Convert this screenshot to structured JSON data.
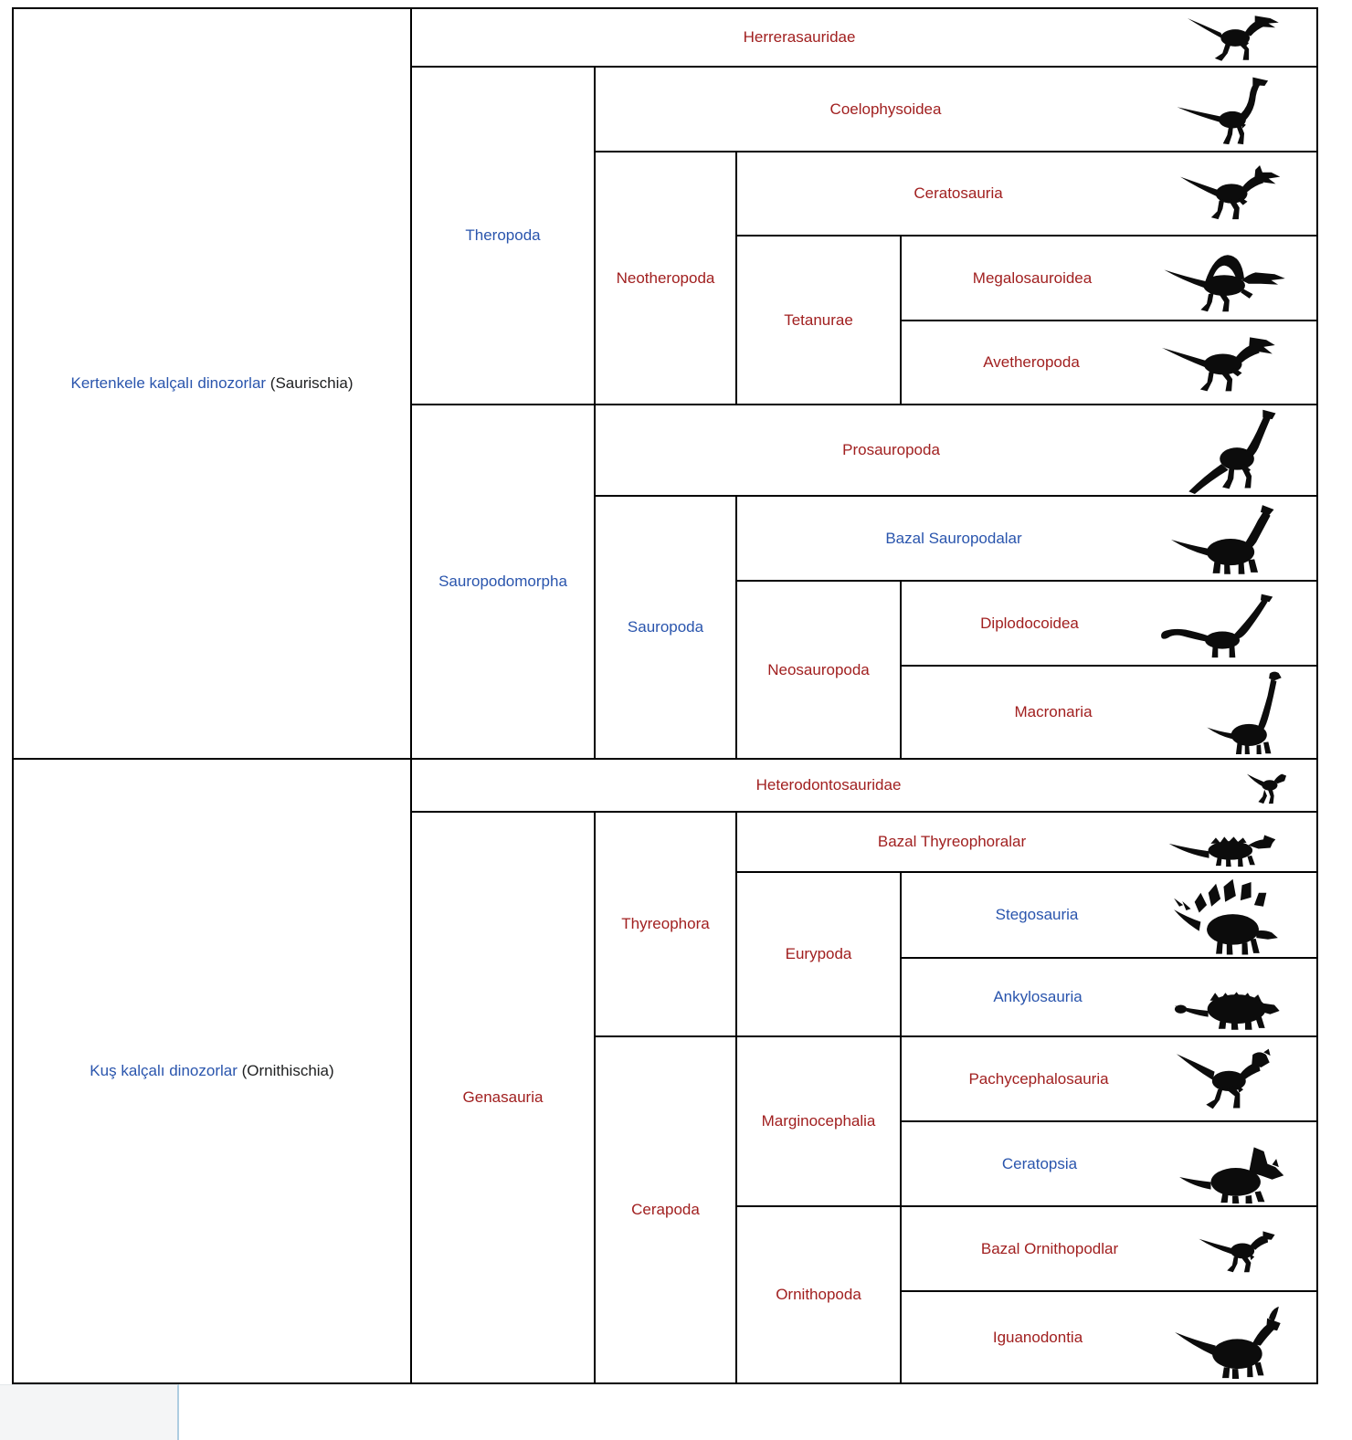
{
  "colors": {
    "taxon_link_blue": "#2a55ad",
    "taxon_link_red": "#a12020",
    "plain_text": "#202122",
    "table_border": "#000000",
    "silhouette": "#0c0c0c",
    "footer_box_bg": "#f4f5f6",
    "footer_box_border": "#aecde1"
  },
  "table": {
    "groups": {
      "saurischia": {
        "link_text": "Kertenkele kalçalı dinozorlar",
        "suffix": " (Saurischia)"
      },
      "ornithischia": {
        "link_text": "Kuş kalçalı dinozorlar",
        "suffix": " (Ornithischia)"
      }
    },
    "clades": {
      "theropoda": {
        "label": "Theropoda",
        "style": "blue"
      },
      "neotheropoda": {
        "label": "Neotheropoda",
        "style": "red"
      },
      "tetanurae": {
        "label": "Tetanurae",
        "style": "red"
      },
      "sauropodomorpha": {
        "label": "Sauropodomorpha",
        "style": "blue"
      },
      "sauropoda": {
        "label": "Sauropoda",
        "style": "blue"
      },
      "neosauropoda": {
        "label": "Neosauropoda",
        "style": "red"
      },
      "genasauria": {
        "label": "Genasauria",
        "style": "red"
      },
      "thyreophora": {
        "label": "Thyreophora",
        "style": "red"
      },
      "eurypoda": {
        "label": "Eurypoda",
        "style": "red"
      },
      "cerapoda": {
        "label": "Cerapoda",
        "style": "red"
      },
      "marginocephalia": {
        "label": "Marginocephalia",
        "style": "red"
      },
      "ornithopoda": {
        "label": "Ornithopoda",
        "style": "red"
      }
    },
    "leaves": {
      "herrerasauridae": {
        "label": "Herrerasauridae",
        "style": "red",
        "icon": "herrerasaurid-silhouette"
      },
      "coelophysoidea": {
        "label": "Coelophysoidea",
        "style": "red",
        "icon": "coelophysoid-silhouette"
      },
      "ceratosauria": {
        "label": "Ceratosauria",
        "style": "red",
        "icon": "ceratosaur-silhouette"
      },
      "megalosauroidea": {
        "label": "Megalosauroidea",
        "style": "red",
        "icon": "spinosaurid-silhouette"
      },
      "avetheropoda": {
        "label": "Avetheropoda",
        "style": "red",
        "icon": "allosaur-silhouette"
      },
      "prosauropoda": {
        "label": "Prosauropoda",
        "style": "red",
        "icon": "prosauropod-silhouette"
      },
      "bazal_sauropodalar": {
        "label": "Bazal Sauropodalar",
        "style": "blue",
        "icon": "basal-sauropod-silhouette"
      },
      "diplodocoidea": {
        "label": "Diplodocoidea",
        "style": "red",
        "icon": "diplodocid-silhouette"
      },
      "macronaria": {
        "label": "Macronaria",
        "style": "red",
        "icon": "brachiosaur-silhouette"
      },
      "heterodontosauridae": {
        "label": "Heterodontosauridae",
        "style": "red",
        "icon": "heterodontosaurid-silhouette"
      },
      "bazal_thyreophoralar": {
        "label": "Bazal Thyreophoralar",
        "style": "red",
        "icon": "basal-thyreophoran-silhouette"
      },
      "stegosauria": {
        "label": "Stegosauria",
        "style": "blue",
        "icon": "stegosaur-silhouette"
      },
      "ankylosauria": {
        "label": "Ankylosauria",
        "style": "blue",
        "icon": "ankylosaur-silhouette"
      },
      "pachycephalosauria": {
        "label": "Pachycephalosauria",
        "style": "red",
        "icon": "pachycephalosaur-silhouette"
      },
      "ceratopsia": {
        "label": "Ceratopsia",
        "style": "blue",
        "icon": "ceratopsian-silhouette"
      },
      "bazal_ornithopodlar": {
        "label": "Bazal Ornithopodlar",
        "style": "red",
        "icon": "basal-ornithopod-silhouette"
      },
      "iguanodontia": {
        "label": "Iguanodontia",
        "style": "red",
        "icon": "iguanodont-silhouette"
      }
    }
  }
}
